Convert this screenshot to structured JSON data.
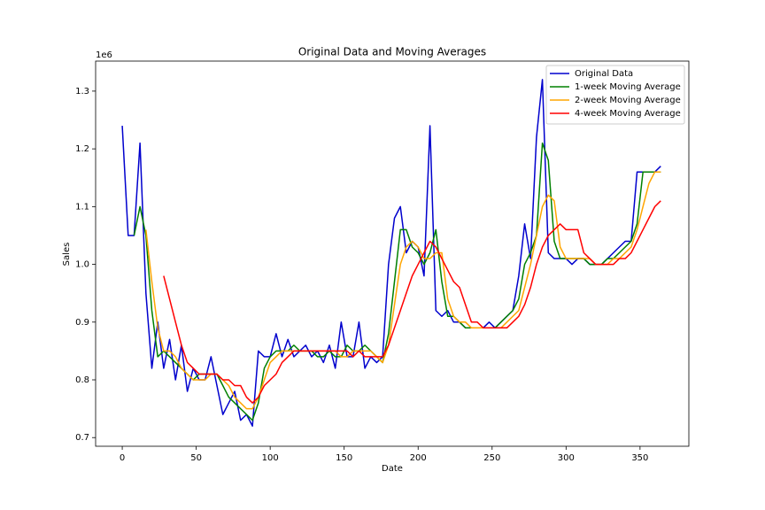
{
  "chart_data": {
    "type": "line",
    "title": "Original Data and Moving Averages",
    "xlabel": "Date",
    "ylabel": "Sales",
    "y_offset_label": "1e6",
    "x": [
      0,
      4,
      8,
      12,
      16,
      20,
      24,
      28,
      32,
      36,
      40,
      44,
      48,
      52,
      56,
      60,
      64,
      68,
      72,
      76,
      80,
      84,
      88,
      92,
      96,
      100,
      104,
      108,
      112,
      116,
      120,
      124,
      128,
      132,
      136,
      140,
      144,
      148,
      152,
      156,
      160,
      164,
      168,
      172,
      176,
      180,
      184,
      188,
      192,
      196,
      200,
      204,
      208,
      212,
      216,
      220,
      224,
      228,
      232,
      236,
      240,
      244,
      248,
      252,
      256,
      260,
      264,
      268,
      272,
      276,
      280,
      284,
      288,
      292,
      296,
      300,
      304,
      308,
      312,
      316,
      320,
      324,
      328,
      332,
      336,
      340,
      344,
      348,
      352,
      356,
      360,
      364
    ],
    "series": [
      {
        "name": "Original Data",
        "color": "#0000cd",
        "values": [
          1.24,
          1.05,
          1.05,
          1.21,
          0.95,
          0.82,
          0.9,
          0.82,
          0.87,
          0.8,
          0.86,
          0.78,
          0.82,
          0.8,
          0.8,
          0.84,
          0.79,
          0.74,
          0.76,
          0.78,
          0.73,
          0.74,
          0.72,
          0.85,
          0.84,
          0.84,
          0.88,
          0.84,
          0.87,
          0.84,
          0.85,
          0.86,
          0.84,
          0.85,
          0.83,
          0.86,
          0.82,
          0.9,
          0.84,
          0.84,
          0.9,
          0.82,
          0.84,
          0.83,
          0.84,
          1.0,
          1.08,
          1.1,
          1.02,
          1.04,
          1.03,
          0.98,
          1.24,
          0.92,
          0.91,
          0.92,
          0.9,
          0.9,
          0.89,
          0.89,
          0.89,
          0.89,
          0.9,
          0.89,
          0.9,
          0.91,
          0.92,
          0.98,
          1.07,
          1.01,
          1.22,
          1.32,
          1.02,
          1.01,
          1.01,
          1.01,
          1.0,
          1.01,
          1.01,
          1.0,
          1.0,
          1.0,
          1.01,
          1.02,
          1.03,
          1.04,
          1.04,
          1.16,
          1.16,
          1.16,
          1.16,
          1.17
        ]
      },
      {
        "name": "1-week Moving Average",
        "color": "#008000",
        "values": [
          null,
          null,
          1.05,
          1.1,
          1.05,
          0.92,
          0.84,
          0.85,
          0.84,
          0.83,
          0.82,
          0.81,
          0.8,
          0.81,
          0.81,
          0.81,
          0.81,
          0.79,
          0.77,
          0.76,
          0.75,
          0.74,
          0.73,
          0.76,
          0.82,
          0.84,
          0.85,
          0.85,
          0.85,
          0.86,
          0.85,
          0.85,
          0.85,
          0.84,
          0.84,
          0.85,
          0.84,
          0.84,
          0.86,
          0.85,
          0.85,
          0.86,
          0.85,
          0.84,
          0.83,
          0.88,
          0.97,
          1.06,
          1.06,
          1.03,
          1.02,
          1.0,
          1.02,
          1.06,
          0.97,
          0.91,
          0.91,
          0.9,
          0.89,
          0.89,
          0.89,
          0.89,
          0.89,
          0.89,
          0.9,
          0.91,
          0.92,
          0.94,
          1.0,
          1.02,
          1.05,
          1.21,
          1.18,
          1.04,
          1.01,
          1.01,
          1.01,
          1.01,
          1.01,
          1.0,
          1.0,
          1.0,
          1.01,
          1.01,
          1.02,
          1.03,
          1.04,
          1.07,
          1.16,
          1.16,
          1.16,
          1.16
        ]
      },
      {
        "name": "2-week Moving Average",
        "color": "#ffa500",
        "values": [
          null,
          null,
          null,
          null,
          1.06,
          0.97,
          0.89,
          0.85,
          0.85,
          0.84,
          0.82,
          0.81,
          0.8,
          0.8,
          0.8,
          0.81,
          0.81,
          0.8,
          0.79,
          0.77,
          0.76,
          0.75,
          0.75,
          0.77,
          0.8,
          0.83,
          0.84,
          0.85,
          0.85,
          0.85,
          0.85,
          0.85,
          0.85,
          0.85,
          0.85,
          0.85,
          0.85,
          0.84,
          0.84,
          0.85,
          0.85,
          0.85,
          0.85,
          0.84,
          0.83,
          0.86,
          0.93,
          1.0,
          1.03,
          1.04,
          1.03,
          1.01,
          1.01,
          1.02,
          1.02,
          0.94,
          0.91,
          0.9,
          0.9,
          0.89,
          0.89,
          0.89,
          0.89,
          0.89,
          0.89,
          0.9,
          0.91,
          0.92,
          0.96,
          1.0,
          1.05,
          1.1,
          1.12,
          1.11,
          1.03,
          1.01,
          1.01,
          1.01,
          1.01,
          1.01,
          1.0,
          1.0,
          1.0,
          1.01,
          1.01,
          1.02,
          1.03,
          1.06,
          1.1,
          1.14,
          1.16,
          1.16
        ]
      },
      {
        "name": "4-week Moving Average",
        "color": "#ff0000",
        "values": [
          null,
          null,
          null,
          null,
          null,
          null,
          null,
          0.98,
          0.94,
          0.9,
          0.86,
          0.83,
          0.82,
          0.81,
          0.81,
          0.81,
          0.81,
          0.8,
          0.8,
          0.79,
          0.79,
          0.77,
          0.76,
          0.77,
          0.79,
          0.8,
          0.81,
          0.83,
          0.84,
          0.85,
          0.85,
          0.85,
          0.85,
          0.85,
          0.85,
          0.85,
          0.85,
          0.85,
          0.85,
          0.84,
          0.85,
          0.84,
          0.84,
          0.84,
          0.84,
          0.86,
          0.89,
          0.92,
          0.95,
          0.98,
          1.0,
          1.02,
          1.04,
          1.03,
          1.01,
          0.99,
          0.97,
          0.96,
          0.93,
          0.9,
          0.9,
          0.89,
          0.89,
          0.89,
          0.89,
          0.89,
          0.9,
          0.91,
          0.93,
          0.96,
          1.0,
          1.03,
          1.05,
          1.06,
          1.07,
          1.06,
          1.06,
          1.06,
          1.02,
          1.01,
          1.0,
          1.0,
          1.0,
          1.0,
          1.01,
          1.01,
          1.02,
          1.04,
          1.06,
          1.08,
          1.1,
          1.11
        ]
      }
    ],
    "xlim": [
      -18,
      383
    ],
    "ylim": [
      0.685,
      1.352
    ],
    "xticks": [
      0,
      50,
      100,
      150,
      200,
      250,
      300,
      350
    ],
    "yticks": [
      0.7,
      0.8,
      0.9,
      {
        "value": 1,
        "label": "1.0"
      },
      1.1,
      1.2,
      1.3
    ],
    "grid": false,
    "legend": "upper right"
  }
}
